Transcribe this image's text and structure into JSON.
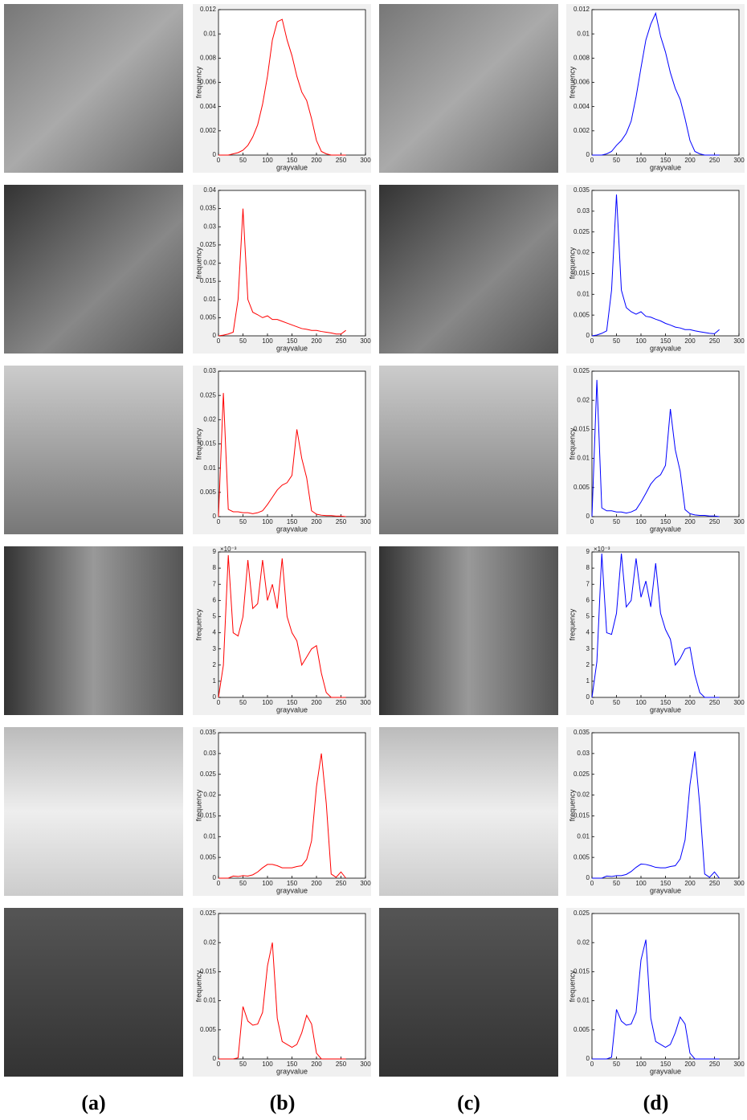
{
  "panel_labels": [
    "(a)",
    "(b)",
    "(c)",
    "(d)"
  ],
  "chart_data": [
    {
      "type": "line",
      "x_label": "grayvalue",
      "y_label": "frequency",
      "color": "#ff0000",
      "xlim": [
        0,
        300
      ],
      "xticks": [
        0,
        50,
        100,
        150,
        200,
        250,
        300
      ],
      "ylim": [
        0,
        0.012
      ],
      "yticks": [
        0,
        0.002,
        0.004,
        0.006,
        0.008,
        0.01,
        0.012
      ],
      "x": [
        0,
        10,
        20,
        30,
        40,
        50,
        60,
        70,
        80,
        90,
        100,
        110,
        120,
        130,
        140,
        150,
        160,
        170,
        180,
        190,
        200,
        210,
        220,
        230,
        240,
        250,
        260
      ],
      "values": [
        0,
        0,
        0,
        0.0001,
        0.0002,
        0.0004,
        0.0008,
        0.0015,
        0.0025,
        0.0042,
        0.0065,
        0.0095,
        0.011,
        0.0112,
        0.0095,
        0.0082,
        0.0065,
        0.0052,
        0.0045,
        0.003,
        0.0012,
        0.0003,
        0.0001,
        0,
        0,
        0,
        0
      ]
    },
    {
      "type": "line",
      "x_label": "grayvalue",
      "y_label": "frequency",
      "color": "#0000ff",
      "xlim": [
        0,
        300
      ],
      "xticks": [
        0,
        50,
        100,
        150,
        200,
        250,
        300
      ],
      "ylim": [
        0,
        0.012
      ],
      "yticks": [
        0,
        0.002,
        0.004,
        0.006,
        0.008,
        0.01,
        0.012
      ],
      "x": [
        0,
        10,
        20,
        30,
        40,
        50,
        60,
        70,
        80,
        90,
        100,
        110,
        120,
        130,
        140,
        150,
        160,
        170,
        180,
        190,
        200,
        210,
        220,
        230,
        240,
        250,
        260
      ],
      "values": [
        0,
        0,
        0,
        0.0001,
        0.0003,
        0.0008,
        0.0012,
        0.0018,
        0.0028,
        0.0048,
        0.0072,
        0.0095,
        0.0108,
        0.0117,
        0.0098,
        0.0085,
        0.0068,
        0.0055,
        0.0046,
        0.003,
        0.0012,
        0.0003,
        0.0001,
        0,
        0,
        0,
        0
      ]
    },
    {
      "type": "line",
      "x_label": "grayvalue",
      "y_label": "frequency",
      "color": "#ff0000",
      "xlim": [
        0,
        300
      ],
      "xticks": [
        0,
        50,
        100,
        150,
        200,
        250,
        300
      ],
      "ylim": [
        0,
        0.04
      ],
      "yticks": [
        0,
        0.005,
        0.01,
        0.015,
        0.02,
        0.025,
        0.03,
        0.035,
        0.04
      ],
      "x": [
        0,
        10,
        20,
        30,
        40,
        50,
        60,
        70,
        80,
        90,
        100,
        110,
        120,
        130,
        140,
        150,
        160,
        170,
        180,
        190,
        200,
        210,
        220,
        230,
        240,
        250,
        260
      ],
      "values": [
        0,
        0.0002,
        0.0005,
        0.001,
        0.01,
        0.035,
        0.01,
        0.0065,
        0.0058,
        0.005,
        0.0055,
        0.0045,
        0.0045,
        0.004,
        0.0035,
        0.003,
        0.0025,
        0.002,
        0.0018,
        0.0015,
        0.0015,
        0.0012,
        0.001,
        0.0008,
        0.0005,
        0.0005,
        0.0015
      ]
    },
    {
      "type": "line",
      "x_label": "grayvalue",
      "y_label": "frequency",
      "color": "#0000ff",
      "xlim": [
        0,
        300
      ],
      "xticks": [
        0,
        50,
        100,
        150,
        200,
        250,
        300
      ],
      "ylim": [
        0,
        0.035
      ],
      "yticks": [
        0,
        0.005,
        0.01,
        0.015,
        0.02,
        0.025,
        0.03,
        0.035
      ],
      "x": [
        0,
        10,
        20,
        30,
        40,
        50,
        60,
        70,
        80,
        90,
        100,
        110,
        120,
        130,
        140,
        150,
        160,
        170,
        180,
        190,
        200,
        210,
        220,
        230,
        240,
        250,
        260
      ],
      "values": [
        0,
        0.0002,
        0.0006,
        0.0012,
        0.011,
        0.034,
        0.011,
        0.0068,
        0.0058,
        0.0052,
        0.0058,
        0.0047,
        0.0045,
        0.004,
        0.0036,
        0.003,
        0.0026,
        0.0021,
        0.0019,
        0.0015,
        0.0015,
        0.0012,
        0.001,
        0.0008,
        0.0006,
        0.0005,
        0.0015
      ]
    },
    {
      "type": "line",
      "x_label": "grayvalue",
      "y_label": "frequency",
      "color": "#ff0000",
      "xlim": [
        0,
        300
      ],
      "xticks": [
        0,
        50,
        100,
        150,
        200,
        250,
        300
      ],
      "ylim": [
        0,
        0.03
      ],
      "yticks": [
        0,
        0.005,
        0.01,
        0.015,
        0.02,
        0.025,
        0.03
      ],
      "x": [
        0,
        10,
        20,
        30,
        40,
        50,
        60,
        70,
        80,
        90,
        100,
        110,
        120,
        130,
        140,
        150,
        160,
        170,
        180,
        190,
        200,
        210,
        220,
        230,
        240,
        250,
        260
      ],
      "values": [
        0,
        0.0255,
        0.0015,
        0.001,
        0.001,
        0.0008,
        0.0008,
        0.0006,
        0.0008,
        0.0012,
        0.0025,
        0.004,
        0.0055,
        0.0065,
        0.007,
        0.0085,
        0.018,
        0.012,
        0.008,
        0.0012,
        0.0005,
        0.0003,
        0.0002,
        0.0002,
        0.0001,
        0.0001,
        0
      ]
    },
    {
      "type": "line",
      "x_label": "grayvalue",
      "y_label": "frequency",
      "color": "#0000ff",
      "xlim": [
        0,
        300
      ],
      "xticks": [
        0,
        50,
        100,
        150,
        200,
        250,
        300
      ],
      "ylim": [
        0,
        0.025
      ],
      "yticks": [
        0,
        0.005,
        0.01,
        0.015,
        0.02,
        0.025
      ],
      "x": [
        0,
        10,
        20,
        30,
        40,
        50,
        60,
        70,
        80,
        90,
        100,
        110,
        120,
        130,
        140,
        150,
        160,
        170,
        180,
        190,
        200,
        210,
        220,
        230,
        240,
        250,
        260
      ],
      "values": [
        0,
        0.0235,
        0.0015,
        0.001,
        0.001,
        0.0008,
        0.0008,
        0.0006,
        0.0008,
        0.0012,
        0.0025,
        0.004,
        0.0056,
        0.0066,
        0.0072,
        0.0088,
        0.0185,
        0.0115,
        0.0078,
        0.0012,
        0.0005,
        0.0003,
        0.0002,
        0.0002,
        0.0001,
        0.0001,
        0
      ]
    },
    {
      "type": "line",
      "x_label": "grayvalue",
      "y_label": "frequency",
      "y_multiplier": "×10⁻³",
      "color": "#ff0000",
      "xlim": [
        0,
        300
      ],
      "xticks": [
        0,
        50,
        100,
        150,
        200,
        250,
        300
      ],
      "ylim": [
        0,
        9
      ],
      "yticks": [
        0,
        1,
        2,
        3,
        4,
        5,
        6,
        7,
        8,
        9
      ],
      "x": [
        0,
        10,
        20,
        30,
        40,
        50,
        60,
        70,
        80,
        90,
        100,
        110,
        120,
        130,
        140,
        150,
        160,
        170,
        180,
        190,
        200,
        210,
        220,
        230,
        240,
        250,
        260
      ],
      "values": [
        0,
        2,
        8.8,
        4,
        3.8,
        5,
        8.5,
        5.5,
        5.8,
        8.5,
        6,
        7,
        5.5,
        8.6,
        5,
        4,
        3.5,
        2,
        2.5,
        3,
        3.2,
        1.5,
        0.3,
        0,
        0,
        0,
        0
      ]
    },
    {
      "type": "line",
      "x_label": "grayvalue",
      "y_label": "frequency",
      "y_multiplier": "×10⁻³",
      "color": "#0000ff",
      "xlim": [
        0,
        300
      ],
      "xticks": [
        0,
        50,
        100,
        150,
        200,
        250,
        300
      ],
      "ylim": [
        0,
        9
      ],
      "yticks": [
        0,
        1,
        2,
        3,
        4,
        5,
        6,
        7,
        8,
        9
      ],
      "x": [
        0,
        10,
        20,
        30,
        40,
        50,
        60,
        70,
        80,
        90,
        100,
        110,
        120,
        130,
        140,
        150,
        160,
        170,
        180,
        190,
        200,
        210,
        220,
        230,
        240,
        250,
        260
      ],
      "values": [
        0,
        2.2,
        8.9,
        4,
        3.9,
        5.2,
        8.9,
        5.6,
        6,
        8.6,
        6.2,
        7.2,
        5.6,
        8.3,
        5.2,
        4.2,
        3.6,
        2,
        2.4,
        3,
        3.1,
        1.4,
        0.3,
        0,
        0,
        0,
        0
      ]
    },
    {
      "type": "line",
      "x_label": "grayvalue",
      "y_label": "frequency",
      "color": "#ff0000",
      "xlim": [
        0,
        300
      ],
      "xticks": [
        0,
        50,
        100,
        150,
        200,
        250,
        300
      ],
      "ylim": [
        0,
        0.035
      ],
      "yticks": [
        0,
        0.005,
        0.01,
        0.015,
        0.02,
        0.025,
        0.03,
        0.035
      ],
      "x": [
        0,
        10,
        20,
        30,
        40,
        50,
        60,
        70,
        80,
        90,
        100,
        110,
        120,
        130,
        140,
        150,
        160,
        170,
        180,
        190,
        200,
        210,
        220,
        230,
        240,
        250,
        260
      ],
      "values": [
        0,
        0,
        0,
        0.0005,
        0.0004,
        0.0006,
        0.0005,
        0.0008,
        0.0015,
        0.0025,
        0.0033,
        0.0033,
        0.003,
        0.0025,
        0.0025,
        0.0025,
        0.0028,
        0.003,
        0.0045,
        0.009,
        0.022,
        0.03,
        0.018,
        0.001,
        0.0002,
        0.0015,
        0
      ]
    },
    {
      "type": "line",
      "x_label": "grayvalue",
      "y_label": "frequency",
      "color": "#0000ff",
      "xlim": [
        0,
        300
      ],
      "xticks": [
        0,
        50,
        100,
        150,
        200,
        250,
        300
      ],
      "ylim": [
        0,
        0.035
      ],
      "yticks": [
        0,
        0.005,
        0.01,
        0.015,
        0.02,
        0.025,
        0.03,
        0.035
      ],
      "x": [
        0,
        10,
        20,
        30,
        40,
        50,
        60,
        70,
        80,
        90,
        100,
        110,
        120,
        130,
        140,
        150,
        160,
        170,
        180,
        190,
        200,
        210,
        220,
        230,
        240,
        250,
        260
      ],
      "values": [
        0,
        0,
        0,
        0.0005,
        0.0004,
        0.0006,
        0.0006,
        0.0009,
        0.0016,
        0.0026,
        0.0034,
        0.0033,
        0.003,
        0.0026,
        0.0025,
        0.0025,
        0.0028,
        0.003,
        0.0046,
        0.0092,
        0.0225,
        0.0305,
        0.0175,
        0.001,
        0.0002,
        0.0015,
        0
      ]
    },
    {
      "type": "line",
      "x_label": "grayvalue",
      "y_label": "frequency",
      "color": "#ff0000",
      "xlim": [
        0,
        300
      ],
      "xticks": [
        0,
        50,
        100,
        150,
        200,
        250,
        300
      ],
      "ylim": [
        0,
        0.025
      ],
      "yticks": [
        0,
        0.005,
        0.01,
        0.015,
        0.02,
        0.025
      ],
      "x": [
        0,
        10,
        20,
        30,
        40,
        50,
        60,
        70,
        80,
        90,
        100,
        110,
        120,
        130,
        140,
        150,
        160,
        170,
        180,
        190,
        200,
        210,
        220,
        230,
        240,
        250,
        260
      ],
      "values": [
        0,
        0,
        0,
        0,
        0.0002,
        0.009,
        0.0065,
        0.0058,
        0.006,
        0.008,
        0.016,
        0.02,
        0.007,
        0.003,
        0.0025,
        0.002,
        0.0025,
        0.0045,
        0.0075,
        0.006,
        0.001,
        0,
        0,
        0,
        0,
        0,
        0
      ]
    },
    {
      "type": "line",
      "x_label": "grayvalue",
      "y_label": "frequency",
      "color": "#0000ff",
      "xlim": [
        0,
        300
      ],
      "xticks": [
        0,
        50,
        100,
        150,
        200,
        250,
        300
      ],
      "ylim": [
        0,
        0.025
      ],
      "yticks": [
        0,
        0.005,
        0.01,
        0.015,
        0.02,
        0.025
      ],
      "x": [
        0,
        10,
        20,
        30,
        40,
        50,
        60,
        70,
        80,
        90,
        100,
        110,
        120,
        130,
        140,
        150,
        160,
        170,
        180,
        190,
        200,
        210,
        220,
        230,
        240,
        250,
        260
      ],
      "values": [
        0,
        0,
        0,
        0,
        0.0003,
        0.0085,
        0.0065,
        0.0058,
        0.006,
        0.008,
        0.017,
        0.0205,
        0.007,
        0.003,
        0.0025,
        0.002,
        0.0025,
        0.0045,
        0.0072,
        0.006,
        0.001,
        0,
        0,
        0,
        0,
        0,
        0
      ]
    }
  ]
}
